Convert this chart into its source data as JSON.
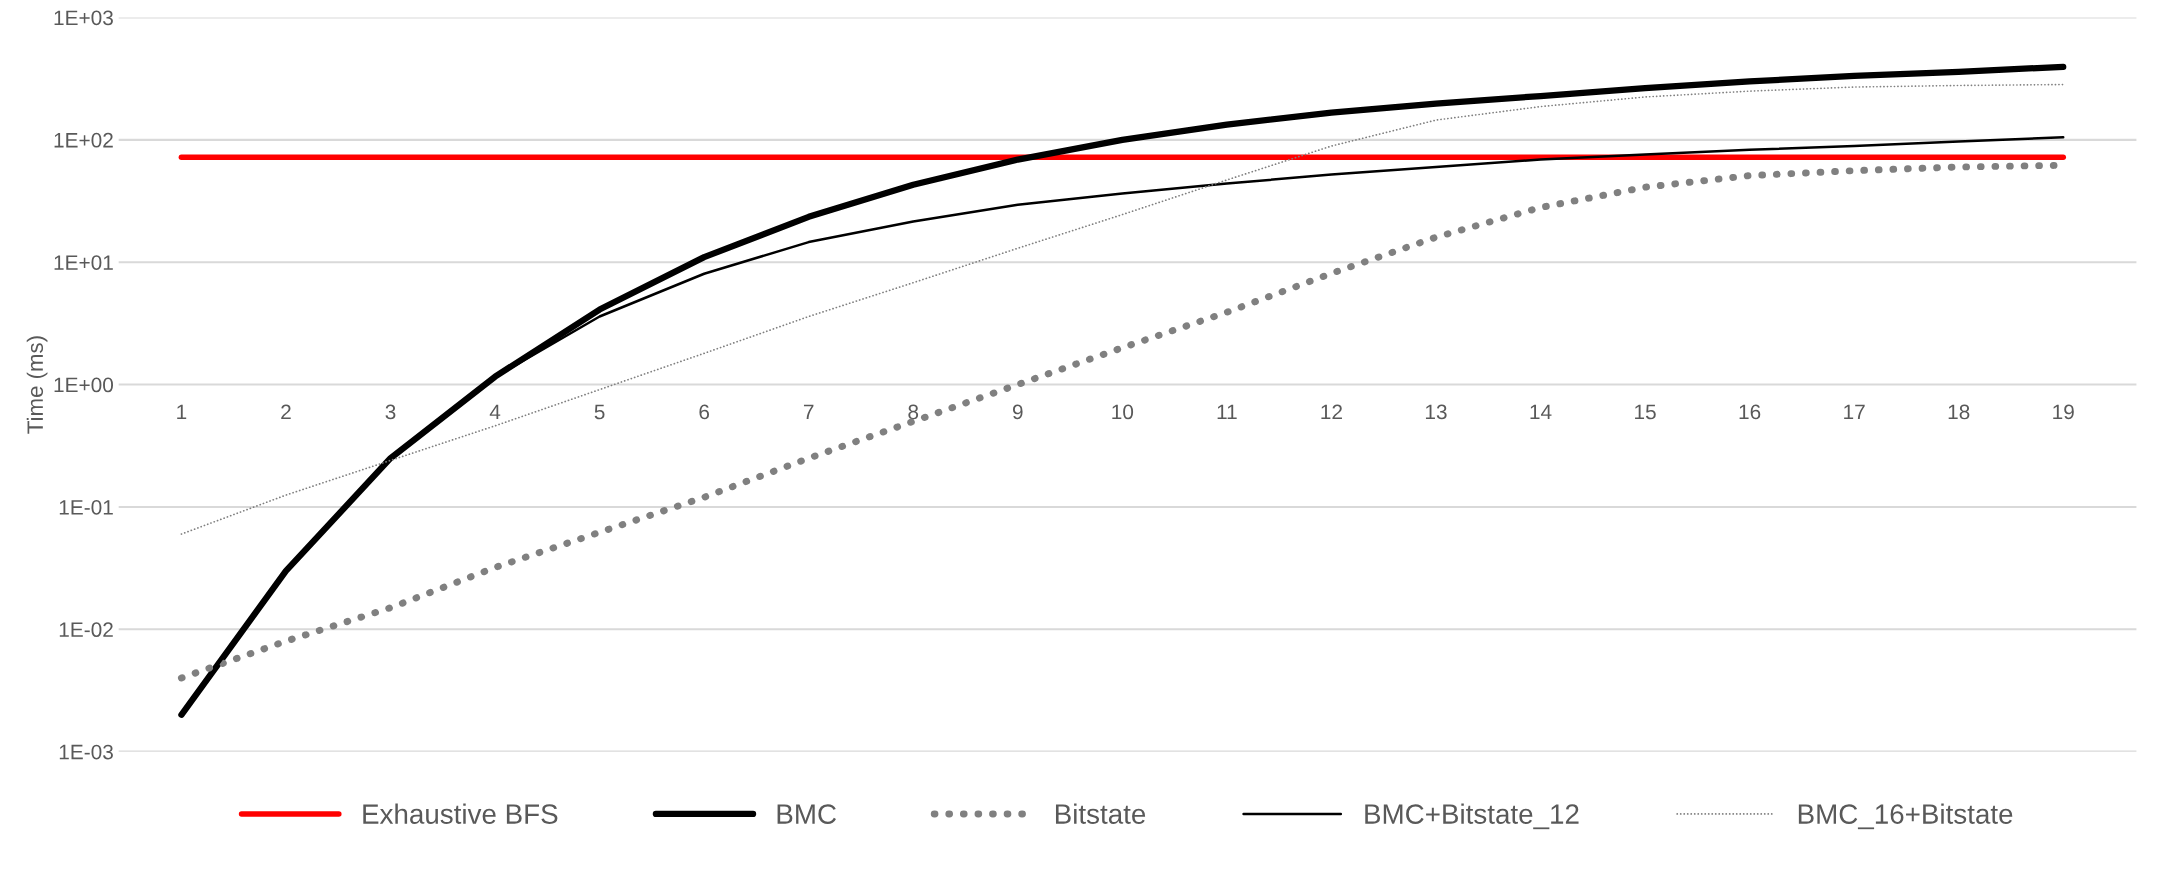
{
  "chart_data": {
    "type": "line",
    "ylabel": "Time (ms)",
    "log": "y",
    "grid": "y",
    "legend": "bottom",
    "marker": "none",
    "categories": [
      "1",
      "2",
      "3",
      "4",
      "5",
      "6",
      "7",
      "8",
      "9",
      "10",
      "11",
      "12",
      "13",
      "14",
      "15",
      "16",
      "17",
      "18",
      "19"
    ],
    "ylim": [
      0.001,
      1000
    ],
    "yticks": [
      {
        "value": 0.001,
        "label": "1E-03"
      },
      {
        "value": 0.01,
        "label": "1E-02"
      },
      {
        "value": 0.1,
        "label": "1E-01"
      },
      {
        "value": 1,
        "label": "1E+00"
      },
      {
        "value": 10,
        "label": "1E+01"
      },
      {
        "value": 100,
        "label": "1E+02"
      },
      {
        "value": 1000,
        "label": "1E+03"
      }
    ],
    "series": [
      {
        "name": "Exhaustive BFS",
        "color": "#ff0000",
        "line_style": "solid",
        "values": [
          72,
          72,
          72,
          72,
          72,
          72,
          72,
          72,
          72,
          72,
          72,
          72,
          72,
          72,
          72,
          72,
          72,
          72,
          72
        ]
      },
      {
        "name": "BMC",
        "color": "#000000",
        "line_style": "solid",
        "values": [
          0.002,
          0.03,
          0.25,
          1.16,
          4.1,
          11,
          23.5,
          43,
          69,
          100,
          133,
          167,
          198,
          228,
          265,
          300,
          333,
          360,
          395
        ]
      },
      {
        "name": "Bitstate",
        "color": "#808080",
        "line_style": "dotted",
        "values": [
          0.004,
          0.008,
          0.015,
          0.032,
          0.062,
          0.12,
          0.25,
          0.5,
          1,
          2,
          3.9,
          8.1,
          16,
          28,
          41,
          51,
          56,
          60,
          62
        ]
      },
      {
        "name": "BMC+Bitstate_12",
        "color": "#000000",
        "line_style": "solid",
        "values": [
          0.002,
          0.03,
          0.25,
          1.15,
          3.6,
          8.05,
          14.6,
          21.5,
          29.5,
          36.5,
          44,
          52,
          60,
          69,
          76,
          83,
          89,
          97,
          105
        ]
      },
      {
        "name": "BMC_16+Bitstate",
        "color": "#808080",
        "line_style": "dotted",
        "values": [
          0.06,
          0.125,
          0.24,
          0.46,
          0.91,
          1.8,
          3.6,
          6.8,
          13,
          24.5,
          47,
          89,
          145,
          187,
          224,
          250,
          270,
          278,
          283
        ]
      }
    ]
  }
}
